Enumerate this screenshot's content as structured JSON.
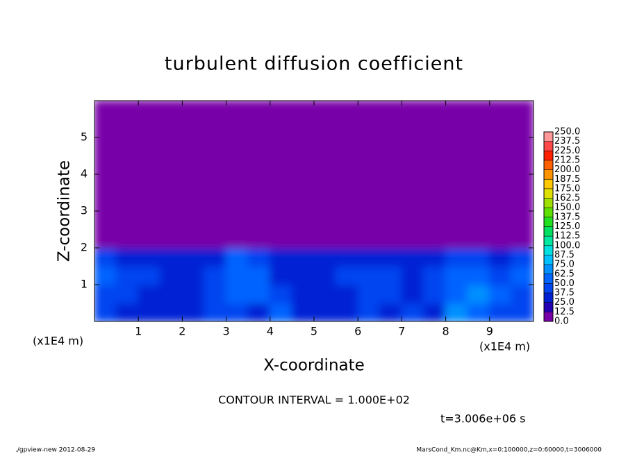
{
  "chart_data": {
    "type": "heatmap",
    "title": "turbulent diffusion coefficient",
    "xlabel": "X-coordinate",
    "ylabel": "Z-coordinate",
    "xunit": "(x1E4 m)",
    "yunit": "(x1E4 m)",
    "annotation": "CONTOUR INTERVAL = 1.000E+02",
    "time_label": "t=3.006e+06 s",
    "footer_left": "./gpview-new  2012-08-29",
    "footer_right": "MarsCond_Km.nc@Km,x=0:100000,z=0:60000,t=3006000",
    "xlim": [
      0,
      10
    ],
    "ylim": [
      0,
      6
    ],
    "xticks": [
      1,
      2,
      3,
      4,
      5,
      6,
      7,
      8,
      9
    ],
    "yticks": [
      1,
      2,
      3,
      4,
      5
    ],
    "x": [
      0.25,
      0.75,
      1.25,
      1.75,
      2.25,
      2.75,
      3.25,
      3.75,
      4.25,
      4.75,
      5.25,
      5.75,
      6.25,
      6.75,
      7.25,
      7.75,
      8.25,
      8.75,
      9.25,
      9.75
    ],
    "y": [
      0.25,
      0.75,
      1.25,
      1.75,
      2.25,
      2.75,
      3.25,
      3.75,
      4.25,
      4.75,
      5.25,
      5.75
    ],
    "z": [
      [
        40,
        35,
        30,
        30,
        35,
        40,
        45,
        35,
        50,
        30,
        30,
        35,
        40,
        35,
        40,
        35,
        70,
        60,
        45,
        40
      ],
      [
        45,
        40,
        35,
        30,
        30,
        40,
        50,
        60,
        45,
        30,
        30,
        35,
        40,
        45,
        35,
        40,
        55,
        65,
        50,
        45
      ],
      [
        50,
        45,
        40,
        35,
        35,
        45,
        55,
        50,
        35,
        30,
        35,
        40,
        45,
        40,
        35,
        40,
        50,
        50,
        45,
        55
      ],
      [
        40,
        35,
        30,
        30,
        30,
        35,
        50,
        45,
        35,
        30,
        30,
        35,
        30,
        30,
        30,
        35,
        45,
        40,
        35,
        45
      ],
      [
        0,
        0,
        0,
        0,
        0,
        0,
        0,
        0,
        0,
        0,
        0,
        0,
        0,
        0,
        0,
        0,
        0,
        0,
        0,
        0
      ],
      [
        0,
        0,
        0,
        0,
        0,
        0,
        0,
        0,
        0,
        0,
        0,
        0,
        0,
        0,
        0,
        0,
        0,
        0,
        0,
        0
      ],
      [
        0,
        0,
        0,
        0,
        0,
        0,
        0,
        0,
        0,
        0,
        0,
        0,
        0,
        0,
        0,
        0,
        0,
        0,
        0,
        0
      ],
      [
        0,
        0,
        0,
        0,
        0,
        0,
        0,
        0,
        0,
        0,
        0,
        0,
        0,
        0,
        0,
        0,
        0,
        0,
        0,
        0
      ],
      [
        0,
        0,
        0,
        0,
        0,
        0,
        0,
        0,
        0,
        0,
        0,
        0,
        0,
        0,
        0,
        0,
        0,
        0,
        0,
        0
      ],
      [
        0,
        0,
        0,
        0,
        0,
        0,
        0,
        0,
        0,
        0,
        0,
        0,
        0,
        0,
        0,
        0,
        0,
        0,
        0,
        0
      ],
      [
        0,
        0,
        0,
        0,
        0,
        0,
        0,
        0,
        0,
        0,
        0,
        0,
        0,
        0,
        0,
        0,
        0,
        0,
        0,
        0
      ],
      [
        0,
        0,
        0,
        0,
        0,
        0,
        0,
        0,
        0,
        0,
        0,
        0,
        0,
        0,
        0,
        0,
        0,
        0,
        0,
        0
      ]
    ],
    "levels": [
      {
        "value": 0,
        "label": "0.0"
      },
      12.5,
      {
        "value": 25,
        "label": "25.0"
      },
      37.5,
      {
        "value": 50,
        "label": "50.0"
      },
      62.5,
      {
        "value": 75,
        "label": "75.0"
      },
      87.5,
      {
        "value": 100,
        "label": "100.0"
      },
      112.5,
      {
        "value": 125,
        "label": "125.0"
      },
      137.5,
      {
        "value": 150,
        "label": "150.0"
      },
      162.5,
      {
        "value": 175,
        "label": "175.0"
      },
      187.5,
      {
        "value": 200,
        "label": "200.0"
      },
      212.5,
      {
        "value": 225,
        "label": "225.0"
      },
      237.5,
      {
        "value": 250,
        "label": "250.0"
      }
    ],
    "colors": [
      "#7800a8",
      "#2400b4",
      "#0020d4",
      "#0044f0",
      "#0064ff",
      "#0090ff",
      "#00c0ff",
      "#00e0e0",
      "#00e8a0",
      "#00e060",
      "#20e020",
      "#60e000",
      "#a0e000",
      "#e0e000",
      "#ffc800",
      "#ff9400",
      "#ff6000",
      "#ff2000",
      "#ff4848",
      "#ff9898"
    ]
  }
}
